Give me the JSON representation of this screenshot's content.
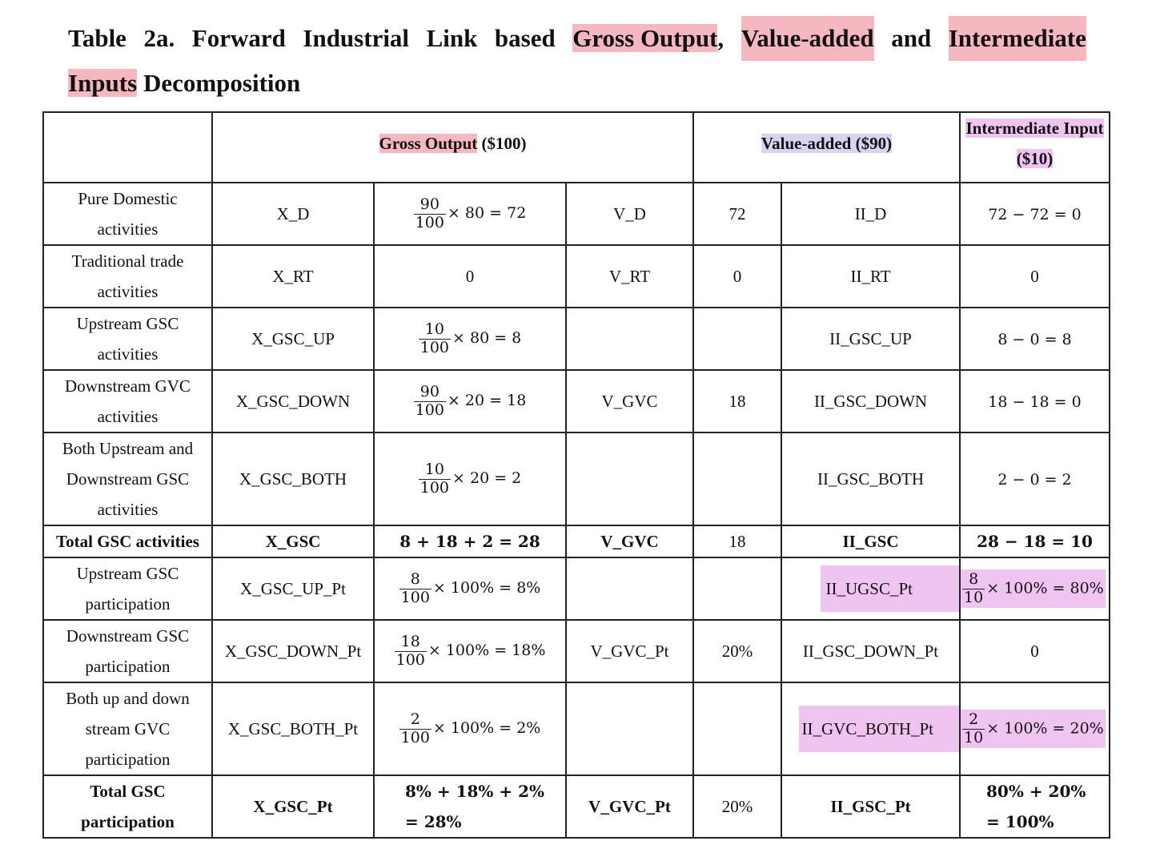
{
  "title": {
    "line1_start": "Table 2a. Forward Industrial Link based",
    "gross_output": "Gross Output",
    "comma": ",",
    "value_added": "Value-added",
    "and": "and",
    "intermediate": "Intermediate",
    "line2_inputs": "Inputs",
    "line2_rest": " Decomposition"
  },
  "headers": {
    "gross_output_prefix": "Gross Output",
    "gross_output_suffix": " ($100)",
    "value_added_prefix": "Value-added",
    "value_added_suffix": " ($90)",
    "intermediate_prefix": "Intermediate Input",
    "intermediate_suffix": " ($10)"
  },
  "rows": [
    {
      "label": "Pure Domestic activities",
      "x": "X_D",
      "x_num": "90",
      "x_den": "100",
      "x_tail": "× 80 = 72",
      "v": "V_D",
      "v_val": "72",
      "ii": "II_D",
      "ii_val": "72 − 72 = 0"
    },
    {
      "label": "Traditional trade activities",
      "x": "X_RT",
      "x_val": "0",
      "v": "V_RT",
      "v_val": "0",
      "ii": "II_RT",
      "ii_val": "0"
    },
    {
      "label": "Upstream GSC activities",
      "x": "X_GSC_UP",
      "x_num": "10",
      "x_den": "100",
      "x_tail": "× 80 = 8",
      "v": "",
      "v_val": "",
      "ii": "II_GSC_UP",
      "ii_val": "8 − 0 = 8"
    },
    {
      "label": "Downstream GVC activities",
      "x": "X_GSC_DOWN",
      "x_num": "90",
      "x_den": "100",
      "x_tail": "× 20 = 18",
      "v": "V_GVC",
      "v_val": "18",
      "ii": "II_GSC_DOWN",
      "ii_val": "18 − 18 = 0"
    },
    {
      "label": "Both Upstream and Downstream GSC activities",
      "x": "X_GSC_BOTH",
      "x_num": "10",
      "x_den": "100",
      "x_tail": "× 20 = 2",
      "v": "",
      "v_val": "",
      "ii": "II_GSC_BOTH",
      "ii_val": "2 − 0 = 2"
    },
    {
      "label": "Total GSC activities",
      "x": "X_GSC",
      "x_val": "8 + 18 + 2 = 28",
      "v": "V_GVC",
      "v_val": "18",
      "ii": "II_GSC",
      "ii_val": "28 − 18 = 10"
    },
    {
      "label": "Upstream GSC participation",
      "x": "X_GSC_UP_Pt",
      "x_num": "8",
      "x_den": "100",
      "x_tail": "× 100% = 8%",
      "v": "",
      "v_val": "",
      "ii": "II_UGSC_Pt",
      "ii_num": "8",
      "ii_den": "10",
      "ii_tail": "× 100% = 80%"
    },
    {
      "label": "Downstream GSC participation",
      "x": "X_GSC_DOWN_Pt",
      "x_num": "18",
      "x_den": "100",
      "x_tail": "× 100% = 18%",
      "v": "V_GVC_Pt",
      "v_val": "20%",
      "ii": "II_GSC_DOWN_Pt",
      "ii_val": "0"
    },
    {
      "label": "Both up and down stream GVC participation",
      "x": "X_GSC_BOTH_Pt",
      "x_num": "2",
      "x_den": "100",
      "x_tail": "× 100% = 2%",
      "v": "",
      "v_val": "",
      "ii": "II_GVC_BOTH_Pt",
      "ii_num": "2",
      "ii_den": "10",
      "ii_tail": "× 100% = 20%"
    },
    {
      "label": "Total GSC participation",
      "x": "X_GSC_Pt",
      "x_val_l1": "8% + 18% + 2%",
      "x_val_l2": "= 28%",
      "v": "V_GVC_Pt",
      "v_val": "20%",
      "ii": "II_GSC_Pt",
      "ii_val_l1": "80% + 20%",
      "ii_val_l2": "= 100%"
    }
  ],
  "label_lines": {
    "r0": [
      "Pure Domestic",
      "activities"
    ],
    "r1": [
      "Traditional trade",
      "activities"
    ],
    "r2": [
      "Upstream GSC",
      "activities"
    ],
    "r3": [
      "Downstream GVC",
      "activities"
    ],
    "r4": [
      "Both Upstream and",
      "Downstream GSC",
      "activities"
    ],
    "r6": [
      "Upstream GSC",
      "participation"
    ],
    "r7": [
      "Downstream GSC",
      "participation"
    ],
    "r8": [
      "Both up and down",
      "stream GVC",
      "participation"
    ],
    "r9": [
      "Total GSC",
      "participation"
    ]
  },
  "highlight_colors": {
    "title": "#f5b8c0",
    "value_added_header": "#d9d3f2",
    "intermediate_header": "#f0c4f0",
    "pink_cells": "#f0c4f0"
  }
}
